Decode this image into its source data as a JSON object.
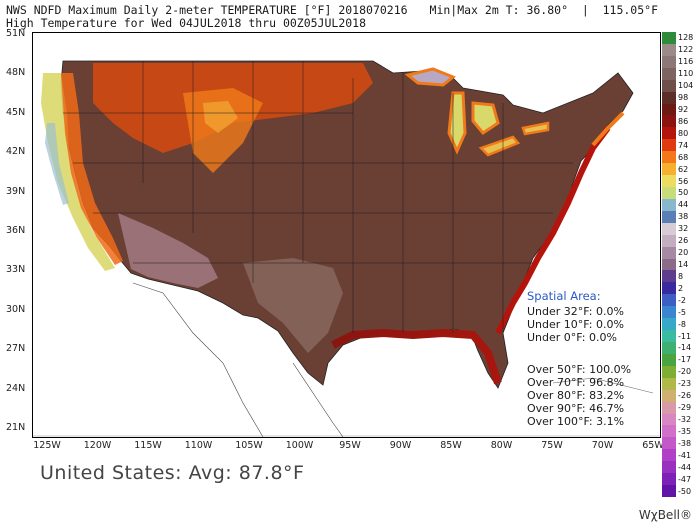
{
  "header": {
    "line1": "NWS NDFD Maximum Daily 2-meter TEMPERATURE [°F] 2018070216",
    "line2": "High Temperature for Wed 04JUL2018 thru 00Z05JUL2018",
    "minmax": "Min|Max 2m T: 36.80°  |  115.05°F"
  },
  "axes": {
    "lat": [
      "51N",
      "48N",
      "45N",
      "42N",
      "39N",
      "36N",
      "33N",
      "30N",
      "27N",
      "24N",
      "21N"
    ],
    "lon": [
      "125W",
      "120W",
      "115W",
      "110W",
      "105W",
      "100W",
      "95W",
      "90W",
      "85W",
      "80W",
      "75W",
      "70W",
      "65W"
    ]
  },
  "stats": {
    "title": "Spatial Area:",
    "under": [
      "Under 32°F: 0.0%",
      "Under 10°F: 0.0%",
      "Under 0°F: 0.0%"
    ],
    "over": [
      "Over 50°F: 100.0%",
      "Over 70°F: 96.8%",
      "Over 80°F: 83.2%",
      "Over 90°F: 46.7%",
      "Over 100°F: 3.1%"
    ]
  },
  "average": "United States: Avg: 87.8°F",
  "brand": "WχBell®",
  "legend": [
    {
      "label": "128",
      "color": "#2e8b3c"
    },
    {
      "label": "122",
      "color": "#9a8a88"
    },
    {
      "label": "116",
      "color": "#8c7876"
    },
    {
      "label": "110",
      "color": "#7d6460"
    },
    {
      "label": "104",
      "color": "#6e4f4a"
    },
    {
      "label": "98",
      "color": "#5b2e27"
    },
    {
      "label": "92",
      "color": "#6b1a14"
    },
    {
      "label": "86",
      "color": "#8a1510"
    },
    {
      "label": "80",
      "color": "#b5140c"
    },
    {
      "label": "74",
      "color": "#e03a10"
    },
    {
      "label": "68",
      "color": "#f2781a"
    },
    {
      "label": "62",
      "color": "#f5b030"
    },
    {
      "label": "56",
      "color": "#eedc60"
    },
    {
      "label": "50",
      "color": "#c9dc7a"
    },
    {
      "label": "44",
      "color": "#88b8cc"
    },
    {
      "label": "38",
      "color": "#5b7fb5"
    },
    {
      "label": "32",
      "color": "#d8ccd4"
    },
    {
      "label": "26",
      "color": "#c2aec0"
    },
    {
      "label": "20",
      "color": "#a68aa5"
    },
    {
      "label": "14",
      "color": "#8b6b88"
    },
    {
      "label": "8",
      "color": "#5e3d8f"
    },
    {
      "label": "2",
      "color": "#3a2aa0"
    },
    {
      "label": "-2",
      "color": "#3d5fc4"
    },
    {
      "label": "-5",
      "color": "#3a86d0"
    },
    {
      "label": "-8",
      "color": "#38a8c8"
    },
    {
      "label": "-11",
      "color": "#3bbca0"
    },
    {
      "label": "-14",
      "color": "#3fb070"
    },
    {
      "label": "-17",
      "color": "#4aa440"
    },
    {
      "label": "-20",
      "color": "#7fae36"
    },
    {
      "label": "-23",
      "color": "#b0b848"
    },
    {
      "label": "-26",
      "color": "#d0b070"
    },
    {
      "label": "-29",
      "color": "#d89aa8"
    },
    {
      "label": "-32",
      "color": "#d888c0"
    },
    {
      "label": "-35",
      "color": "#d070c8"
    },
    {
      "label": "-38",
      "color": "#c458c8"
    },
    {
      "label": "-41",
      "color": "#b040c8"
    },
    {
      "label": "-44",
      "color": "#9830c0"
    },
    {
      "label": "-47",
      "color": "#7d22b6"
    },
    {
      "label": "-50",
      "color": "#6214a8"
    }
  ]
}
